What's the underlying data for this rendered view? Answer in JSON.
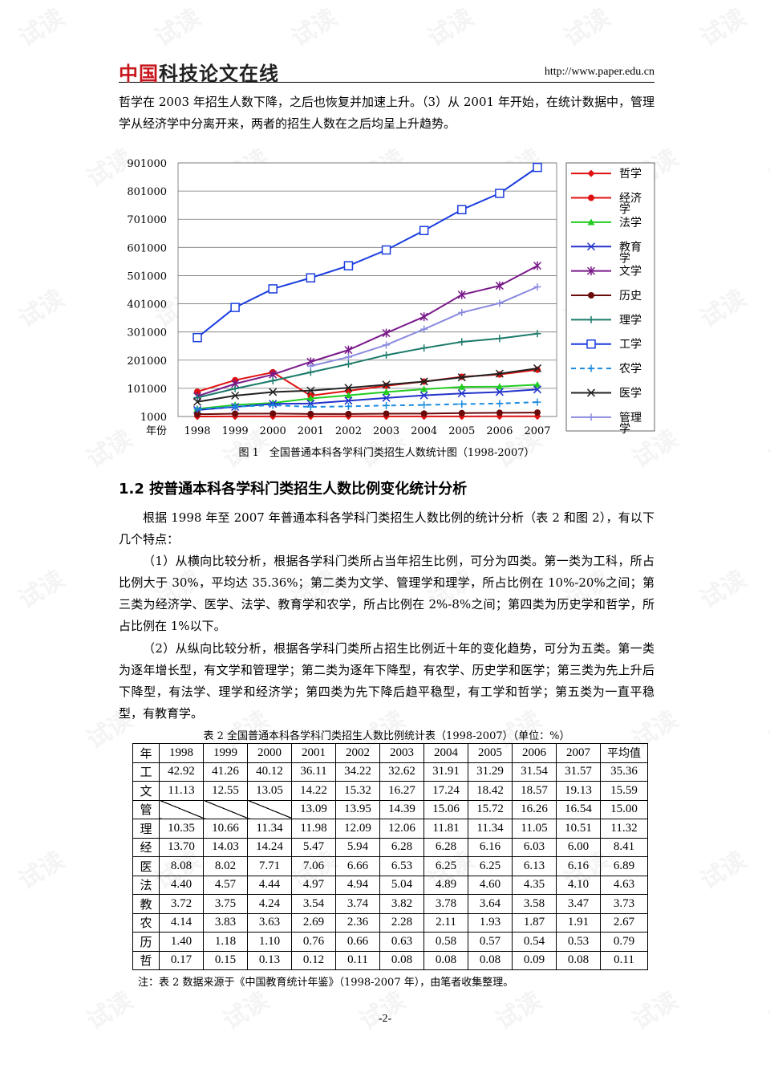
{
  "header": {
    "logo_red": "中国",
    "logo_black": "科技论文在线",
    "url": "http://www.paper.edu.cn"
  },
  "watermark": "试读",
  "paragraphs": {
    "p1": "哲学在 2003 年招生人数下降，之后也恢复并加速上升。（3）从 2001 年开始，在统计数据中，管理学从经济学中分离开来，两者的招生人数在之后均呈上升趋势。",
    "p2": "根据 1998 年至 2007 年普通本科各学科门类招生人数比例的统计分析（表 2 和图 2），有以下几个特点：",
    "p3": "（1）从横向比较分析，根据各学科门类所占当年招生比例，可分为四类。第一类为工科，所占比例大于 30%，平均达 35.36%；第二类为文学、管理学和理学，所占比例在 10%-20%之间；第三类为经济学、医学、法学、教育学和农学，所占比例在 2%-8%之间；第四类为历史学和哲学，所占比例在 1%以下。",
    "p4": "（2）从纵向比较分析，根据各学科门类所占招生比例近十年的变化趋势，可分为五类。第一类为逐年增长型，有文学和管理学；第二类为逐年下降型，有农学、历史学和医学；第三类为先上升后下降型，有法学、理学和经济学；第四类为先下降后趋平稳型，有工学和哲学；第五类为一直平稳型，有教育学。"
  },
  "figure_caption": "图 1　全国普通本科各学科门类招生人数统计图（1998-2007）",
  "section_title": "1.2  按普通本科各学科门类招生人数比例变化统计分析",
  "table_caption": "表 2  全国普通本科各学科门类招生人数比例统计表（1998-2007）（单位：%）",
  "table": {
    "corner": "年",
    "years": [
      "1998",
      "1999",
      "2000",
      "2001",
      "2002",
      "2003",
      "2004",
      "2005",
      "2006",
      "2007"
    ],
    "avg_header": "平均值",
    "rows": [
      {
        "label": "工",
        "values": [
          "42.92",
          "41.26",
          "40.12",
          "36.11",
          "34.22",
          "32.62",
          "31.91",
          "31.29",
          "31.54",
          "31.57"
        ],
        "avg": "35.36"
      },
      {
        "label": "文",
        "values": [
          "11.13",
          "12.55",
          "13.05",
          "14.22",
          "15.32",
          "16.27",
          "17.24",
          "18.42",
          "18.57",
          "19.13"
        ],
        "avg": "15.59"
      },
      {
        "label": "管",
        "values": [
          "",
          "",
          "",
          "13.09",
          "13.95",
          "14.39",
          "15.06",
          "15.72",
          "16.26",
          "16.54"
        ],
        "avg": "15.00"
      },
      {
        "label": "理",
        "values": [
          "10.35",
          "10.66",
          "11.34",
          "11.98",
          "12.09",
          "12.06",
          "11.81",
          "11.34",
          "11.05",
          "10.51"
        ],
        "avg": "11.32"
      },
      {
        "label": "经",
        "values": [
          "13.70",
          "14.03",
          "14.24",
          "5.47",
          "5.94",
          "6.28",
          "6.28",
          "6.16",
          "6.03",
          "6.00"
        ],
        "avg": "8.41"
      },
      {
        "label": "医",
        "values": [
          "8.08",
          "8.02",
          "7.71",
          "7.06",
          "6.66",
          "6.53",
          "6.25",
          "6.25",
          "6.13",
          "6.16"
        ],
        "avg": "6.89"
      },
      {
        "label": "法",
        "values": [
          "4.40",
          "4.57",
          "4.44",
          "4.97",
          "4.94",
          "5.04",
          "4.89",
          "4.60",
          "4.35",
          "4.10"
        ],
        "avg": "4.63"
      },
      {
        "label": "教",
        "values": [
          "3.72",
          "3.75",
          "4.24",
          "3.54",
          "3.74",
          "3.82",
          "3.78",
          "3.64",
          "3.58",
          "3.47"
        ],
        "avg": "3.73"
      },
      {
        "label": "农",
        "values": [
          "4.14",
          "3.83",
          "3.63",
          "2.69",
          "2.36",
          "2.28",
          "2.11",
          "1.93",
          "1.87",
          "1.91"
        ],
        "avg": "2.67"
      },
      {
        "label": "历",
        "values": [
          "1.40",
          "1.18",
          "1.10",
          "0.76",
          "0.66",
          "0.63",
          "0.58",
          "0.57",
          "0.54",
          "0.53"
        ],
        "avg": "0.79"
      },
      {
        "label": "哲",
        "values": [
          "0.17",
          "0.15",
          "0.13",
          "0.12",
          "0.11",
          "0.08",
          "0.08",
          "0.08",
          "0.09",
          "0.08"
        ],
        "avg": "0.11"
      }
    ]
  },
  "table_note": "注：表 2 数据来源于《中国教育统计年鉴》（1998-2007 年），由笔者收集整理。",
  "page_number": "-2-",
  "chart_data": {
    "type": "line",
    "xlabel": "年份",
    "ylabel": "",
    "x": [
      1998,
      1999,
      2000,
      2001,
      2002,
      2003,
      2004,
      2005,
      2006,
      2007
    ],
    "ylim": [
      1000,
      901000
    ],
    "yticks": [
      1000,
      101000,
      201000,
      301000,
      401000,
      501000,
      601000,
      701000,
      801000,
      901000
    ],
    "grid": true,
    "legend_position": "right",
    "series": [
      {
        "name": "哲学",
        "color": "#e01010",
        "marker": "diamond",
        "dash": false,
        "values": [
          1100,
          1300,
          1400,
          1500,
          1600,
          1300,
          1400,
          1500,
          1700,
          1800
        ]
      },
      {
        "name": "经济学",
        "color": "#e01010",
        "marker": "circle",
        "dash": false,
        "values": [
          89000,
          130000,
          158000,
          75000,
          92000,
          110000,
          125000,
          142000,
          150000,
          167000
        ]
      },
      {
        "name": "法学",
        "color": "#22cc22",
        "marker": "triangle",
        "dash": false,
        "values": [
          28000,
          42000,
          49000,
          65000,
          76000,
          88000,
          98000,
          106000,
          107000,
          114000
        ]
      },
      {
        "name": "教育学",
        "color": "#2233cc",
        "marker": "x",
        "dash": false,
        "values": [
          24000,
          35000,
          46000,
          47000,
          57000,
          67000,
          76000,
          83000,
          88000,
          97000
        ]
      },
      {
        "name": "文学",
        "color": "#7a1a8a",
        "marker": "star",
        "dash": false,
        "values": [
          73000,
          117000,
          150000,
          195000,
          237000,
          297000,
          355000,
          433000,
          465000,
          536000
        ]
      },
      {
        "name": "历史",
        "color": "#6a0a0a",
        "marker": "circle",
        "dash": false,
        "values": [
          9000,
          11000,
          11500,
          10000,
          10000,
          11000,
          11500,
          13000,
          14000,
          15000
        ]
      },
      {
        "name": "理学",
        "color": "#1a7a6a",
        "marker": "plus",
        "dash": false,
        "values": [
          68000,
          100000,
          128000,
          158000,
          187000,
          219000,
          244000,
          266000,
          278000,
          295000
        ]
      },
      {
        "name": "工学",
        "color": "#1a3de0",
        "marker": "square",
        "dash": false,
        "values": [
          281000,
          388000,
          454000,
          493000,
          536000,
          592000,
          661000,
          735000,
          793000,
          885000
        ]
      },
      {
        "name": "农学",
        "color": "#1a8adf",
        "marker": "plus",
        "dash": true,
        "values": [
          27000,
          36000,
          41000,
          35000,
          37000,
          40000,
          42000,
          45000,
          47000,
          52000
        ]
      },
      {
        "name": "医学",
        "color": "#222222",
        "marker": "x",
        "dash": false,
        "values": [
          53000,
          75000,
          88000,
          93000,
          103000,
          114000,
          125000,
          140000,
          153000,
          172000
        ]
      },
      {
        "name": "管理学",
        "color": "#8a8ae0",
        "marker": "plus",
        "dash": false,
        "values": [
          null,
          null,
          null,
          180000,
          212000,
          255000,
          311000,
          370000,
          403000,
          461000
        ]
      }
    ]
  }
}
